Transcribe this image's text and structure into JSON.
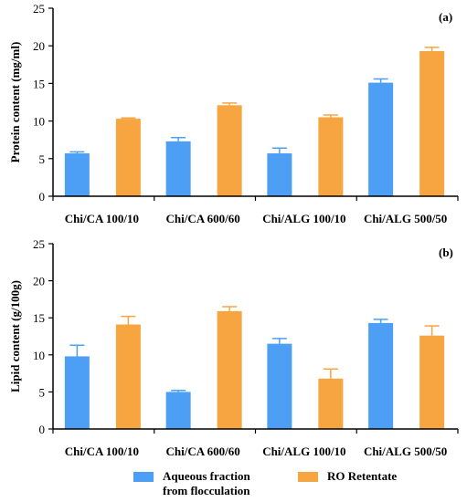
{
  "chart_data": [
    {
      "type": "bar",
      "panel_label": "(a)",
      "ylabel": "Protein content (mg/ml)",
      "ylim": [
        0,
        25
      ],
      "yticks": [
        0,
        5,
        10,
        15,
        20,
        25
      ],
      "categories": [
        "Chi/CA 100/10",
        "Chi/CA 600/60",
        "Chi/ALG 100/10",
        "Chi/ALG 500/50"
      ],
      "series": [
        {
          "name": "Aqueous fraction from flocculation",
          "values": [
            5.7,
            7.3,
            5.7,
            15.1
          ],
          "errors": [
            0.2,
            0.5,
            0.7,
            0.5
          ]
        },
        {
          "name": "RO Retentate",
          "values": [
            10.3,
            12.1,
            10.5,
            19.3
          ],
          "errors": [
            0.1,
            0.3,
            0.3,
            0.5
          ]
        }
      ]
    },
    {
      "type": "bar",
      "panel_label": "(b)",
      "ylabel": "Lipid content (g/100g)",
      "ylim": [
        0,
        25
      ],
      "yticks": [
        0,
        5,
        10,
        15,
        20,
        25
      ],
      "categories": [
        "Chi/CA 100/10",
        "Chi/CA 600/60",
        "Chi/ALG 100/10",
        "Chi/ALG 500/50"
      ],
      "series": [
        {
          "name": "Aqueous fraction from flocculation",
          "values": [
            9.8,
            5.0,
            11.5,
            14.3
          ],
          "errors": [
            1.5,
            0.2,
            0.7,
            0.5
          ]
        },
        {
          "name": "RO Retentate",
          "values": [
            14.1,
            15.9,
            6.8,
            12.6
          ],
          "errors": [
            1.1,
            0.6,
            1.3,
            1.3
          ]
        }
      ]
    }
  ],
  "legend": {
    "items": [
      {
        "label_line1": "Aqueous fraction",
        "label_line2": "from flocculation",
        "color": "#4d9ff5"
      },
      {
        "label_line1": "RO Retentate",
        "label_line2": "",
        "color": "#f7a540"
      }
    ]
  },
  "colors": {
    "series": [
      "#4d9ff5",
      "#f7a540"
    ],
    "axis": "#000000"
  }
}
